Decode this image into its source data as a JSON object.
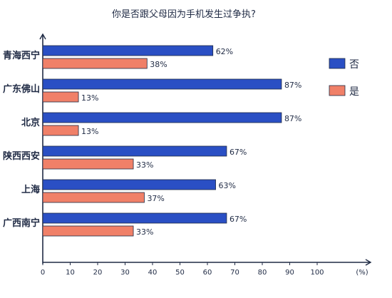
{
  "chart_data": {
    "type": "bar",
    "orientation": "horizontal",
    "title": "你是否跟父母因为手机发生过争执?",
    "categories": [
      "青海西宁",
      "广东佛山",
      "北京",
      "陕西西安",
      "上海",
      "广西南宁"
    ],
    "series": [
      {
        "name": "否",
        "color": "#2a4fc4",
        "values": [
          62,
          87,
          87,
          67,
          63,
          67
        ],
        "labels": [
          "62%",
          "87%",
          "87%",
          "67%",
          "63%",
          "67%"
        ]
      },
      {
        "name": "是",
        "color": "#f08068",
        "values": [
          38,
          13,
          13,
          33,
          37,
          33
        ],
        "labels": [
          "38%",
          "13%",
          "13%",
          "33%",
          "37%",
          "33%"
        ]
      }
    ],
    "xlim": [
      0,
      100
    ],
    "xticks": [
      "0",
      "10",
      "20",
      "30",
      "40",
      "50",
      "60",
      "70",
      "80",
      "90",
      "100"
    ],
    "xunit": "(%)",
    "legend_position": "right",
    "grid": false
  }
}
